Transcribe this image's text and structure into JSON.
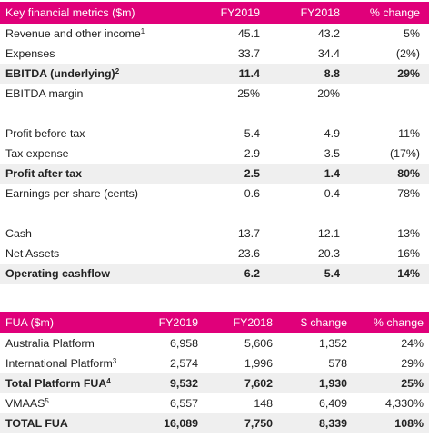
{
  "table1": {
    "headers": [
      "Key financial metrics ($m)",
      "FY2019",
      "FY2018",
      "% change"
    ],
    "rows": [
      {
        "label": "Revenue and other income",
        "sup": "1",
        "v1": "45.1",
        "v2": "43.2",
        "v3": "5%",
        "bold": false,
        "shaded": false
      },
      {
        "label": "Expenses",
        "sup": "",
        "v1": "33.7",
        "v2": "34.4",
        "v3": "(2%)",
        "bold": false,
        "shaded": false
      },
      {
        "label": "EBITDA (underlying)",
        "sup": "2",
        "v1": "11.4",
        "v2": "8.8",
        "v3": "29%",
        "bold": true,
        "shaded": true
      },
      {
        "label": "EBITDA margin",
        "sup": "",
        "v1": "25%",
        "v2": "20%",
        "v3": "",
        "bold": false,
        "shaded": false
      },
      {
        "label": "Profit before tax",
        "sup": "",
        "v1": "5.4",
        "v2": "4.9",
        "v3": "11%",
        "bold": false,
        "shaded": false
      },
      {
        "label": "Tax expense",
        "sup": "",
        "v1": "2.9",
        "v2": "3.5",
        "v3": "(17%)",
        "bold": false,
        "shaded": false
      },
      {
        "label": "Profit after tax",
        "sup": "",
        "v1": "2.5",
        "v2": "1.4",
        "v3": "80%",
        "bold": true,
        "shaded": true
      },
      {
        "label": "Earnings per share (cents)",
        "sup": "",
        "v1": "0.6",
        "v2": "0.4",
        "v3": "78%",
        "bold": false,
        "shaded": false
      },
      {
        "label": "Cash",
        "sup": "",
        "v1": "13.7",
        "v2": "12.1",
        "v3": "13%",
        "bold": false,
        "shaded": false
      },
      {
        "label": "Net Assets",
        "sup": "",
        "v1": "23.6",
        "v2": "20.3",
        "v3": "16%",
        "bold": false,
        "shaded": false
      },
      {
        "label": "Operating cashflow",
        "sup": "",
        "v1": "6.2",
        "v2": "5.4",
        "v3": "14%",
        "bold": true,
        "shaded": true
      }
    ]
  },
  "table2": {
    "headers": [
      "FUA ($m)",
      "FY2019",
      "FY2018",
      "$ change",
      "% change"
    ],
    "rows": [
      {
        "label": "Australia Platform",
        "sup": "",
        "v1": "6,958",
        "v2": "5,606",
        "v3": "1,352",
        "v4": "24%",
        "bold": false,
        "shaded": false
      },
      {
        "label": "International Platform",
        "sup": "3",
        "v1": "2,574",
        "v2": "1,996",
        "v3": "578",
        "v4": "29%",
        "bold": false,
        "shaded": false
      },
      {
        "label": "Total Platform FUA",
        "sup": "4",
        "v1": "9,532",
        "v2": "7,602",
        "v3": "1,930",
        "v4": "25%",
        "bold": true,
        "shaded": true
      },
      {
        "label": "VMAAS",
        "sup": "5",
        "v1": "6,557",
        "v2": "148",
        "v3": "6,409",
        "v4": "4,330%",
        "bold": false,
        "shaded": false
      },
      {
        "label": "TOTAL FUA",
        "sup": "",
        "v1": "16,089",
        "v2": "7,750",
        "v3": "8,339",
        "v4": "108%",
        "bold": true,
        "shaded": true
      }
    ]
  },
  "colors": {
    "header": "#e0007a",
    "shaded_row": "#efefef",
    "text": "#222222"
  }
}
